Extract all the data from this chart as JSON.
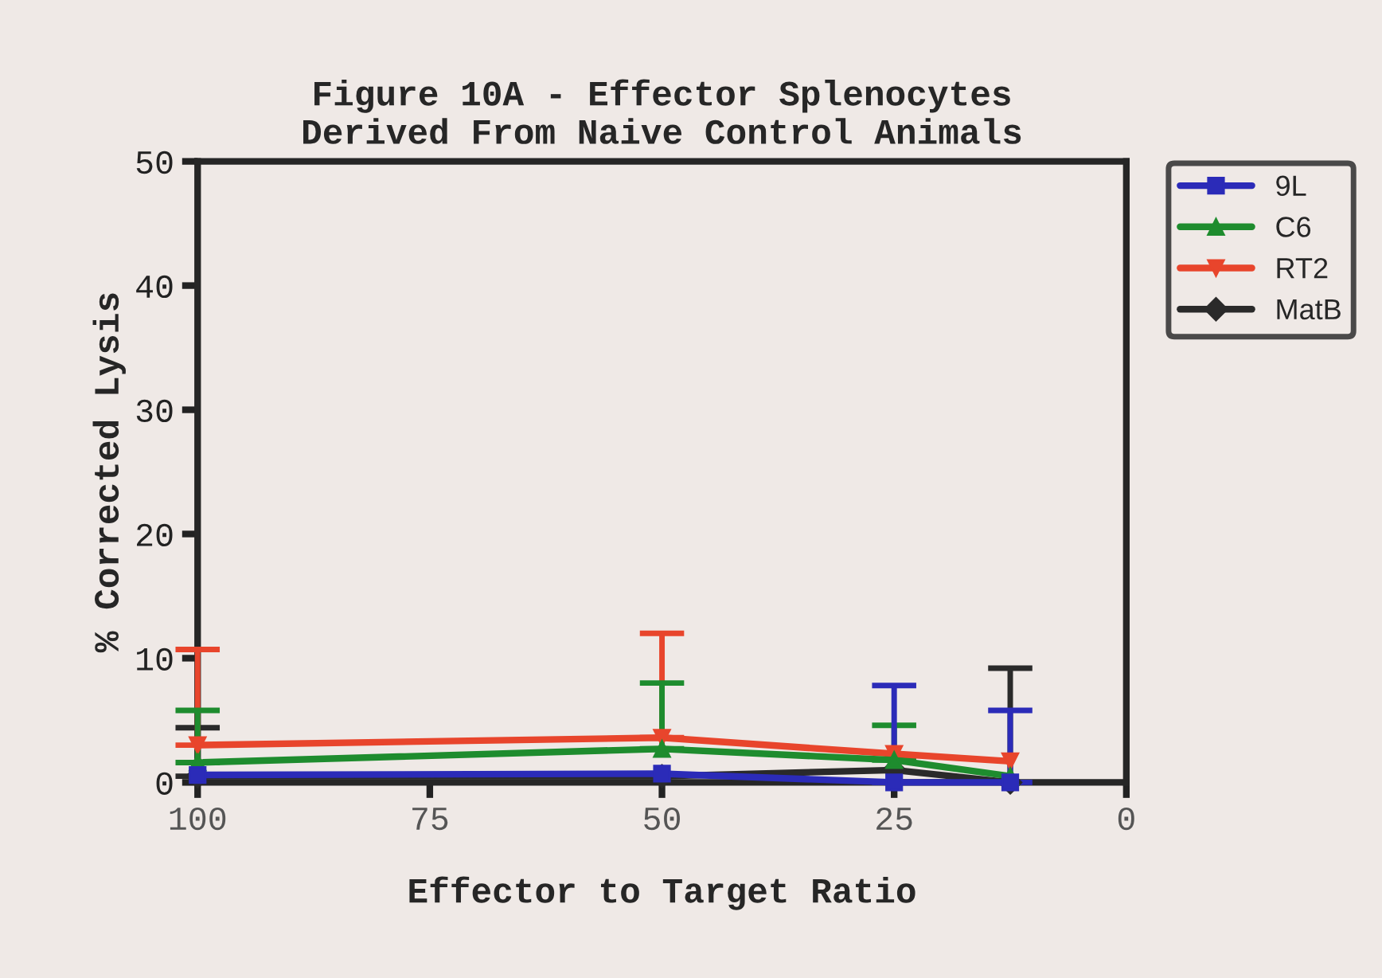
{
  "chart_data": {
    "type": "line",
    "title": "Figure 10A - Effector Splenocytes\nDerived From Naive Control Animals",
    "xlabel": "Effector to Target Ratio",
    "ylabel": "% Corrected Lysis",
    "x": [
      100,
      50,
      25,
      12.5
    ],
    "series": [
      {
        "name": "9L",
        "color": "#2b2bb8",
        "marker": "square",
        "values": [
          0.6,
          0.7,
          0,
          0
        ],
        "errors": [
          null,
          null,
          [
            0,
            7.8
          ],
          [
            0,
            5.8
          ]
        ]
      },
      {
        "name": "C6",
        "color": "#1e8c2e",
        "marker": "triangle",
        "values": [
          1.6,
          2.7,
          1.8,
          0.5
        ],
        "errors": [
          [
            1.6,
            5.8
          ],
          [
            2.7,
            8
          ],
          [
            1.8,
            4.6
          ],
          null
        ]
      },
      {
        "name": "RT2",
        "color": "#e8452c",
        "marker": "triangle_down",
        "values": [
          3.0,
          3.6,
          2.3,
          1.7
        ],
        "errors": [
          [
            3.0,
            10.7
          ],
          [
            3.6,
            12
          ],
          null,
          null
        ]
      },
      {
        "name": "MatB",
        "color": "#2a2a2a",
        "marker": "diamond",
        "values": [
          0.5,
          0.5,
          1.0,
          0
        ],
        "errors": [
          [
            0.5,
            4.4
          ],
          null,
          null,
          [
            0,
            9.2
          ]
        ]
      }
    ],
    "xlim": [
      100,
      0
    ],
    "xticks": [
      100,
      75,
      50,
      25,
      0
    ],
    "ylim": [
      0,
      50
    ],
    "yticks": [
      0,
      10,
      20,
      30,
      40,
      50
    ],
    "grid": false,
    "legend": "top right"
  }
}
